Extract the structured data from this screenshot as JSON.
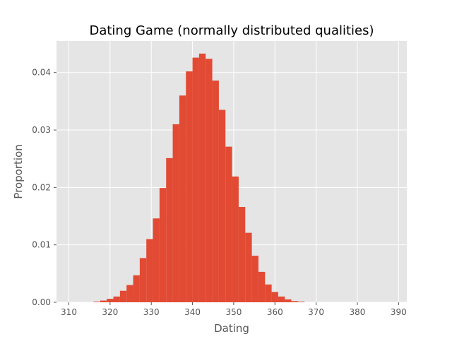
{
  "chart_data": {
    "type": "bar",
    "title": "Dating Game (normally distributed qualities)",
    "xlabel": "Dating",
    "ylabel": "Proportion",
    "xlim": [
      307,
      392
    ],
    "ylim": [
      0,
      0.0455
    ],
    "xticks": [
      "310",
      "320",
      "330",
      "340",
      "350",
      "360",
      "370",
      "380",
      "390"
    ],
    "yticks": [
      "0.00",
      "0.01",
      "0.02",
      "0.03",
      "0.04"
    ],
    "grid": true,
    "bar_color": "#e24a33",
    "bins": [
      {
        "x0": 316.0,
        "x1": 317.6,
        "value": 0.0001
      },
      {
        "x0": 317.6,
        "x1": 319.2,
        "value": 0.0003
      },
      {
        "x0": 319.2,
        "x1": 320.8,
        "value": 0.0006
      },
      {
        "x0": 320.8,
        "x1": 322.4,
        "value": 0.001
      },
      {
        "x0": 322.4,
        "x1": 324.0,
        "value": 0.002
      },
      {
        "x0": 324.0,
        "x1": 325.6,
        "value": 0.003
      },
      {
        "x0": 325.6,
        "x1": 327.2,
        "value": 0.0047
      },
      {
        "x0": 327.2,
        "x1": 328.8,
        "value": 0.0077
      },
      {
        "x0": 328.8,
        "x1": 330.4,
        "value": 0.011
      },
      {
        "x0": 330.4,
        "x1": 332.0,
        "value": 0.0146
      },
      {
        "x0": 332.0,
        "x1": 333.6,
        "value": 0.0199
      },
      {
        "x0": 333.6,
        "x1": 335.2,
        "value": 0.0251
      },
      {
        "x0": 335.2,
        "x1": 336.8,
        "value": 0.031
      },
      {
        "x0": 336.8,
        "x1": 338.4,
        "value": 0.036
      },
      {
        "x0": 338.4,
        "x1": 340.0,
        "value": 0.0402
      },
      {
        "x0": 340.0,
        "x1": 341.6,
        "value": 0.0426
      },
      {
        "x0": 341.6,
        "x1": 343.2,
        "value": 0.0433
      },
      {
        "x0": 343.2,
        "x1": 344.8,
        "value": 0.0424
      },
      {
        "x0": 344.8,
        "x1": 346.4,
        "value": 0.0386
      },
      {
        "x0": 346.4,
        "x1": 348.0,
        "value": 0.0335
      },
      {
        "x0": 348.0,
        "x1": 349.6,
        "value": 0.0271
      },
      {
        "x0": 349.6,
        "x1": 351.2,
        "value": 0.0219
      },
      {
        "x0": 351.2,
        "x1": 352.8,
        "value": 0.0166
      },
      {
        "x0": 352.8,
        "x1": 354.4,
        "value": 0.0121
      },
      {
        "x0": 354.4,
        "x1": 356.0,
        "value": 0.0081
      },
      {
        "x0": 356.0,
        "x1": 357.6,
        "value": 0.0053
      },
      {
        "x0": 357.6,
        "x1": 359.2,
        "value": 0.0031
      },
      {
        "x0": 359.2,
        "x1": 360.8,
        "value": 0.0018
      },
      {
        "x0": 360.8,
        "x1": 362.4,
        "value": 0.001
      },
      {
        "x0": 362.4,
        "x1": 364.0,
        "value": 0.0005
      },
      {
        "x0": 364.0,
        "x1": 365.6,
        "value": 0.0002
      },
      {
        "x0": 365.6,
        "x1": 367.2,
        "value": 0.0001
      }
    ]
  }
}
